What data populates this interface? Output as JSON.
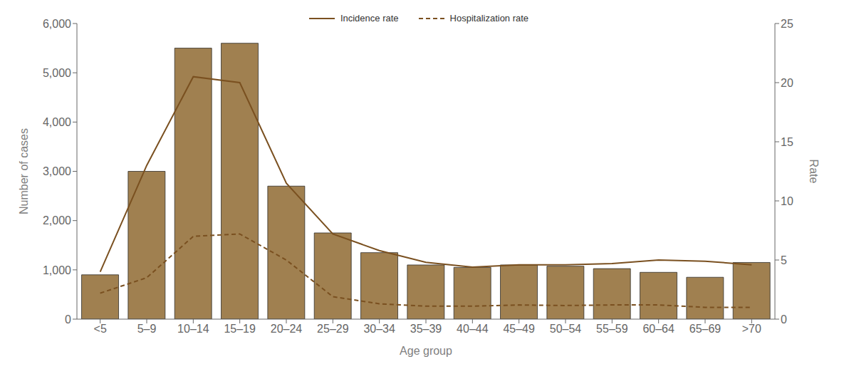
{
  "chart_data": {
    "type": "bar",
    "categories": [
      "<5",
      "5–9",
      "10–14",
      "15–19",
      "20–24",
      "25–29",
      "30–34",
      "35–39",
      "40–44",
      "45–49",
      "50–54",
      "55–59",
      "60–64",
      "65–69",
      ">70"
    ],
    "xlabel": "Age group",
    "ylabel": "Number of cases",
    "y2label": "Rate",
    "ylim": [
      0,
      6000
    ],
    "yticks": [
      0,
      {
        "value": 1000,
        "label": "1,000"
      },
      {
        "value": 2000,
        "label": "2,000"
      },
      {
        "value": 3000,
        "label": "3,000"
      },
      {
        "value": 4000,
        "label": "4,000"
      },
      {
        "value": 5000,
        "label": "5,000"
      },
      {
        "value": 6000,
        "label": "6,000"
      }
    ],
    "y2lim": [
      0,
      25
    ],
    "y2ticks": [
      0,
      5,
      10,
      15,
      20,
      25
    ],
    "grid": false,
    "legend": "top",
    "series": [
      {
        "type": "bar",
        "color": "#a08050",
        "values": [
          900,
          3000,
          5500,
          5600,
          2700,
          1750,
          1350,
          1100,
          1050,
          1100,
          1075,
          1025,
          950,
          850,
          1150
        ]
      },
      {
        "name": "Incidence rate",
        "type": "line",
        "axis": "y2",
        "color": "#7a5020",
        "line_style": "solid",
        "values": [
          4.0,
          13.0,
          20.5,
          20.0,
          11.5,
          7.2,
          5.8,
          4.8,
          4.4,
          4.6,
          4.6,
          4.7,
          5.0,
          4.9,
          4.6
        ]
      },
      {
        "name": "Hospitalization rate",
        "type": "line",
        "axis": "y2",
        "color": "#7a5020",
        "line_style": "dashed",
        "values": [
          2.2,
          3.5,
          7.0,
          7.2,
          5.0,
          1.9,
          1.3,
          1.1,
          1.1,
          1.2,
          1.15,
          1.2,
          1.2,
          1.0,
          1.0
        ]
      }
    ]
  }
}
